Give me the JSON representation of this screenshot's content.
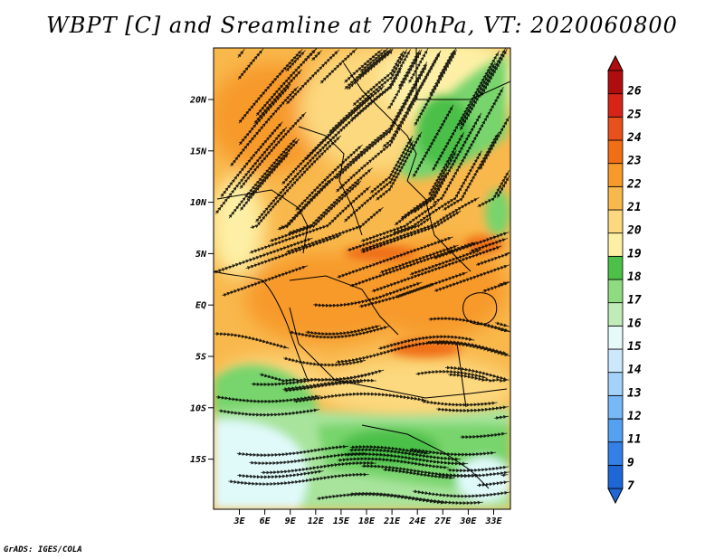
{
  "title": "WBPT [C] and Sreamline at 700hPa, VT: 2020060800",
  "footer": "GrADS: IGES/COLA",
  "map": {
    "lat_labels": [
      "20N",
      "15N",
      "10N",
      "5N",
      "EQ",
      "5S",
      "10S",
      "15S"
    ],
    "lon_labels": [
      "3E",
      "6E",
      "9E",
      "12E",
      "15E",
      "18E",
      "21E",
      "24E",
      "27E",
      "30E",
      "33E"
    ],
    "colors": {
      "green_dark": "#4cc048",
      "green_mid": "#78d46c",
      "green_light": "#a8e49c",
      "cyan_pale": "#e0fafa",
      "yellow": "#fdf0a6",
      "yellow_orange": "#fcd87e",
      "orange_light": "#f9b84c",
      "orange": "#f79a2a",
      "orange_dark": "#ef6e16",
      "streamline": "#000000"
    }
  },
  "colorbar": {
    "labels": [
      "7",
      "9",
      "11",
      "12",
      "13",
      "14",
      "15",
      "16",
      "17",
      "18",
      "19",
      "20",
      "21",
      "22",
      "23",
      "24",
      "25",
      "26"
    ],
    "colors": [
      "#1f66d6",
      "#3580e6",
      "#56a0f2",
      "#78b8f7",
      "#a4d2fb",
      "#cce8fd",
      "#e6fafa",
      "#bfecb8",
      "#8fdc80",
      "#4cc048",
      "#fdf0a6",
      "#fcd87e",
      "#f9b84c",
      "#f79a2a",
      "#ef6e16",
      "#e8501c",
      "#d62418",
      "#b00e0e"
    ]
  }
}
